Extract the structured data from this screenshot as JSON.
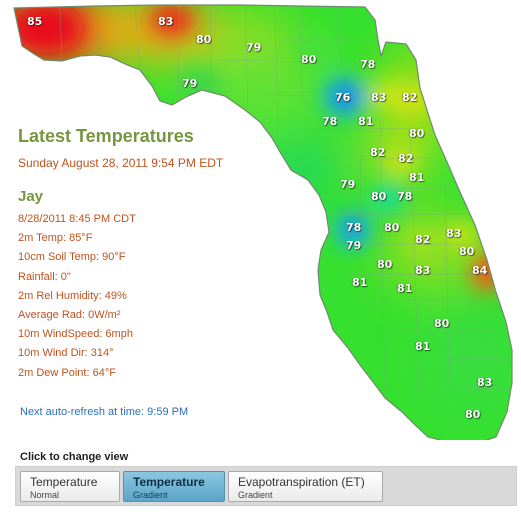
{
  "map": {
    "state": "Florida",
    "accent_colors": {
      "hot": "#e8101e",
      "warm": "#ffcf10",
      "mild": "#8bde16",
      "cool": "#1fdb3c",
      "cold": "#1646e8"
    },
    "temperature_labels": [
      "85",
      "83",
      "80",
      "79",
      "80",
      "78",
      "79",
      "76",
      "83",
      "82",
      "78",
      "81",
      "80",
      "82",
      "82",
      "81",
      "79",
      "80",
      "78",
      "78",
      "80",
      "82",
      "83",
      "79",
      "80",
      "84",
      "81",
      "83",
      "81",
      "80",
      "80",
      "81",
      "83",
      "80"
    ]
  },
  "panel": {
    "heading": "Latest Temperatures",
    "date": "Sunday August 28, 2011  9:54 PM EDT",
    "station": "Jay",
    "readings": [
      "8/28/2011 8:45 PM CDT",
      "2m Temp: 85°F",
      "10cm Soil Temp: 90°F",
      "Rainfall: 0\"",
      "2m Rel Humidity: 49%",
      "Average Rad: 0W/m²",
      "10m WindSpeed: 6mph",
      "10m Wind Dir: 314°",
      "2m Dew Point: 64°F"
    ],
    "refresh": "Next auto-refresh at time: 9:59 PM"
  },
  "views": {
    "caption": "Click to change view",
    "buttons": [
      {
        "label": "Temperature",
        "sub": "Normal",
        "active": false
      },
      {
        "label": "Temperature",
        "sub": "Gradient",
        "active": true
      },
      {
        "label": "Evapotranspiration (ET)",
        "sub": "Gradient",
        "active": false
      }
    ]
  }
}
